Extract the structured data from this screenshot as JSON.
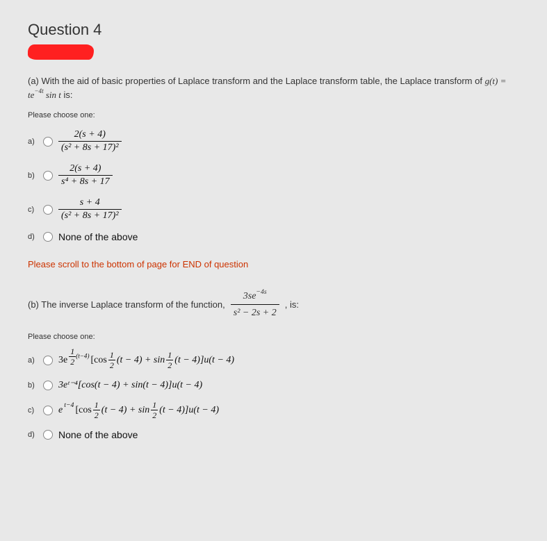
{
  "title": "Question 4",
  "partA": {
    "promptPrefix": "(a) With the aid of basic properties of Laplace transform and the Laplace transform table, the Laplace transform of ",
    "gfuncLHS": "g(t) = te",
    "gfuncExp": "−4t",
    "gfuncRHS": " sin t",
    "promptSuffix": " is:",
    "chooseLabel": "Please choose one:",
    "options": {
      "a": {
        "label": "a)",
        "num": "2(s + 4)",
        "den": "(s² + 8s + 17)²"
      },
      "b": {
        "label": "b)",
        "num": "2(s + 4)",
        "den": "s⁴ + 8s + 17"
      },
      "c": {
        "label": "c)",
        "num": "s + 4",
        "den": "(s² + 8s + 17)²"
      },
      "d": {
        "label": "d)",
        "text": "None of the above"
      }
    }
  },
  "scrollNote": "Please scroll to the bottom of page for END of question",
  "partB": {
    "promptPrefix": "(b) The inverse Laplace transform of the function, ",
    "fracNum": "3se",
    "fracNumExp": "−4s",
    "fracDen": "s² − 2s + 2",
    "promptSuffix": ", is:",
    "chooseLabel": "Please choose one:",
    "options": {
      "a": {
        "label": "a)",
        "lead": "3e",
        "expNum": "1",
        "expDen": "2",
        "expTail": "(t−4)",
        "body1": "[cos",
        "argNum1": "1",
        "argDen1": "2",
        "arg1": "(t − 4) + sin",
        "argNum2": "1",
        "argDen2": "2",
        "arg2": "(t − 4)]u(t − 4)"
      },
      "b": {
        "label": "b)",
        "full": "3eᵗ⁻⁴[cos(t − 4) + sin(t − 4)]u(t − 4)"
      },
      "c": {
        "label": "c)",
        "lead": "e",
        "exp": "t−4",
        "body1": "[cos",
        "argNum1": "1",
        "argDen1": "2",
        "arg1": "(t − 4) + sin",
        "argNum2": "1",
        "argDen2": "2",
        "arg2": "(t − 4)]u(t − 4)"
      },
      "d": {
        "label": "d)",
        "text": "None of the above"
      }
    }
  }
}
